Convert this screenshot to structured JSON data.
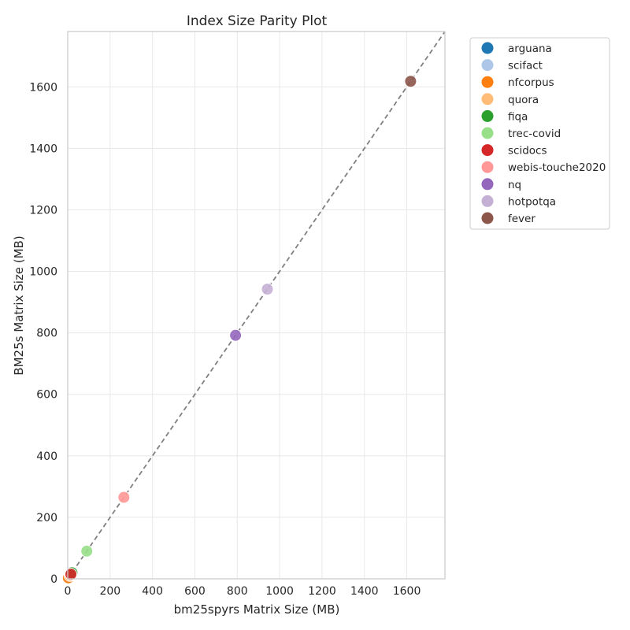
{
  "chart_data": {
    "type": "scatter",
    "title": "Index Size Parity Plot",
    "xlabel": "bm25spyrs Matrix Size (MB)",
    "ylabel": "BM25s Matrix Size (MB)",
    "xlim": [
      0,
      1780
    ],
    "ylim": [
      0,
      1780
    ],
    "xticks": [
      0,
      200,
      400,
      600,
      800,
      1000,
      1200,
      1400,
      1600
    ],
    "yticks": [
      0,
      200,
      400,
      600,
      800,
      1000,
      1200,
      1400,
      1600
    ],
    "grid": true,
    "legend_position": "outside-upper-right",
    "reference_line": {
      "style": "dashed",
      "color": "#808080",
      "from": [
        0,
        0
      ],
      "to": [
        1780,
        1780
      ]
    },
    "series": [
      {
        "name": "arguana",
        "color": "#1f77b4",
        "x": 3,
        "y": 3
      },
      {
        "name": "scifact",
        "color": "#aec7e8",
        "x": 4,
        "y": 4
      },
      {
        "name": "nfcorpus",
        "color": "#ff7f0e",
        "x": 3,
        "y": 3
      },
      {
        "name": "quora",
        "color": "#ffbb78",
        "x": 11,
        "y": 11
      },
      {
        "name": "fiqa",
        "color": "#2ca02c",
        "x": 20,
        "y": 20
      },
      {
        "name": "trec-covid",
        "color": "#98df8a",
        "x": 90,
        "y": 90
      },
      {
        "name": "scidocs",
        "color": "#d62728",
        "x": 15,
        "y": 15
      },
      {
        "name": "webis-touche2020",
        "color": "#ff9896",
        "x": 265,
        "y": 265
      },
      {
        "name": "nq",
        "color": "#9467bd",
        "x": 792,
        "y": 792
      },
      {
        "name": "hotpotqa",
        "color": "#c5b0d5",
        "x": 942,
        "y": 942
      },
      {
        "name": "fever",
        "color": "#8c564b",
        "x": 1618,
        "y": 1618
      }
    ]
  }
}
